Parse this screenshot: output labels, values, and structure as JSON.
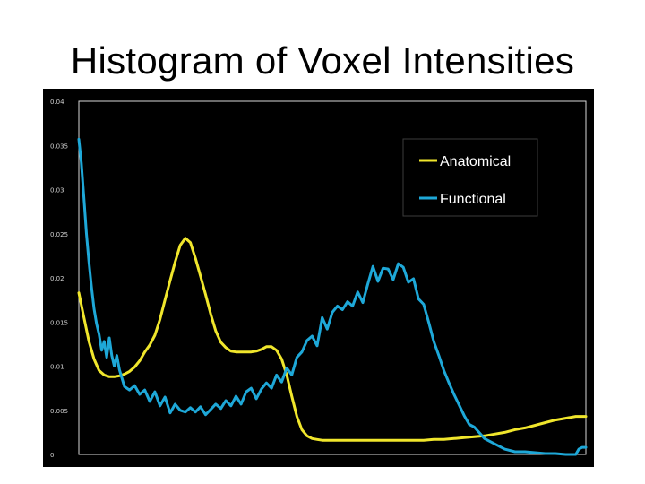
{
  "title": "Histogram of Voxel Intensities",
  "chart_data": {
    "type": "line",
    "title": "Histogram of Voxel Intensities",
    "xlabel": "",
    "ylabel": "",
    "xlim": [
      0,
      100
    ],
    "ylim": [
      0,
      0.04
    ],
    "y_ticks": [
      0,
      0.005,
      0.01,
      0.015,
      0.02,
      0.025,
      0.03,
      0.035,
      0.04
    ],
    "y_tick_labels": [
      "0",
      "0.005",
      "0.01",
      "0.015",
      "0.02",
      "0.025",
      "0.03",
      "0.035",
      "0.04"
    ],
    "grid": false,
    "legend": "top-right",
    "background": "#000000",
    "series": [
      {
        "name": "Anatomical",
        "color": "#f0e62c",
        "x": [
          0,
          1,
          2,
          3,
          4,
          5,
          6,
          7,
          8,
          9,
          10,
          11,
          12,
          13,
          14,
          15,
          16,
          17,
          18,
          19,
          20,
          21,
          22,
          23,
          24,
          25,
          26,
          27,
          28,
          29,
          30,
          31,
          32,
          33,
          34,
          35,
          36,
          37,
          38,
          39,
          40,
          41,
          42,
          43,
          44,
          45,
          46,
          47,
          48,
          49,
          50,
          51,
          52,
          53,
          54,
          55,
          56,
          57,
          58,
          59,
          60,
          62,
          64,
          66,
          68,
          70,
          72,
          74,
          76,
          78,
          80,
          82,
          84,
          86,
          88,
          90,
          92,
          94,
          96,
          98,
          100
        ],
        "y": [
          0.0183,
          0.0155,
          0.0128,
          0.0108,
          0.0095,
          0.009,
          0.0088,
          0.0088,
          0.0089,
          0.0091,
          0.0094,
          0.0099,
          0.0106,
          0.0116,
          0.0124,
          0.0135,
          0.0153,
          0.0175,
          0.0197,
          0.0218,
          0.0237,
          0.0245,
          0.024,
          0.0222,
          0.0202,
          0.0181,
          0.0159,
          0.014,
          0.0127,
          0.0121,
          0.0117,
          0.0116,
          0.0116,
          0.0116,
          0.0116,
          0.0117,
          0.0119,
          0.0122,
          0.0122,
          0.0118,
          0.0108,
          0.009,
          0.0066,
          0.0043,
          0.0028,
          0.0021,
          0.0018,
          0.0017,
          0.0016,
          0.0016,
          0.0016,
          0.0016,
          0.0016,
          0.0016,
          0.0016,
          0.0016,
          0.0016,
          0.0016,
          0.0016,
          0.0016,
          0.0016,
          0.0016,
          0.0016,
          0.0016,
          0.0016,
          0.0017,
          0.0017,
          0.0018,
          0.0019,
          0.002,
          0.0021,
          0.0023,
          0.0025,
          0.0028,
          0.003,
          0.0033,
          0.0036,
          0.0039,
          0.0041,
          0.0043,
          0.0043
        ]
      },
      {
        "name": "Functional",
        "color": "#1ea8d8",
        "x": [
          0,
          0.5,
          1,
          1.5,
          2,
          2.5,
          3,
          3.5,
          4,
          4.5,
          5,
          5.5,
          6,
          6.5,
          7,
          7.5,
          8,
          9,
          10,
          11,
          12,
          13,
          14,
          15,
          16,
          17,
          18,
          19,
          20,
          21,
          22,
          23,
          24,
          25,
          26,
          27,
          28,
          29,
          30,
          31,
          32,
          33,
          34,
          35,
          36,
          37,
          38,
          39,
          40,
          41,
          42,
          43,
          44,
          45,
          46,
          47,
          48,
          49,
          50,
          51,
          52,
          53,
          54,
          55,
          56,
          57,
          58,
          59,
          60,
          61,
          62,
          63,
          64,
          65,
          66,
          67,
          68,
          69,
          70,
          71,
          72,
          73,
          74,
          75,
          76,
          77,
          78,
          80,
          82,
          84,
          86,
          88,
          90,
          92,
          94,
          96,
          97,
          98,
          98.6,
          99.3,
          100
        ],
        "y": [
          0.0357,
          0.033,
          0.029,
          0.025,
          0.0218,
          0.019,
          0.0165,
          0.0148,
          0.0136,
          0.0118,
          0.0128,
          0.011,
          0.0132,
          0.0112,
          0.01,
          0.0112,
          0.0096,
          0.0077,
          0.0073,
          0.0078,
          0.0068,
          0.0073,
          0.006,
          0.0071,
          0.0055,
          0.0065,
          0.0047,
          0.0057,
          0.005,
          0.0048,
          0.0053,
          0.0048,
          0.0054,
          0.0045,
          0.0051,
          0.0057,
          0.0052,
          0.0061,
          0.0055,
          0.0066,
          0.0057,
          0.0071,
          0.0075,
          0.0063,
          0.0074,
          0.0081,
          0.0075,
          0.009,
          0.0082,
          0.0098,
          0.009,
          0.011,
          0.0116,
          0.0129,
          0.0134,
          0.0123,
          0.0155,
          0.0142,
          0.0161,
          0.0168,
          0.0164,
          0.0173,
          0.0168,
          0.0184,
          0.0172,
          0.0193,
          0.0213,
          0.0196,
          0.0211,
          0.021,
          0.0198,
          0.0216,
          0.0212,
          0.0195,
          0.0199,
          0.0176,
          0.017,
          0.015,
          0.0128,
          0.0112,
          0.0095,
          0.0081,
          0.0068,
          0.0056,
          0.0044,
          0.0034,
          0.0031,
          0.0018,
          0.0012,
          0.0006,
          0.0003,
          0.0003,
          0.0002,
          0.0001,
          0.0001,
          0.0,
          0.0,
          0.0,
          0.0006,
          0.0008,
          0.0008
        ]
      }
    ]
  }
}
